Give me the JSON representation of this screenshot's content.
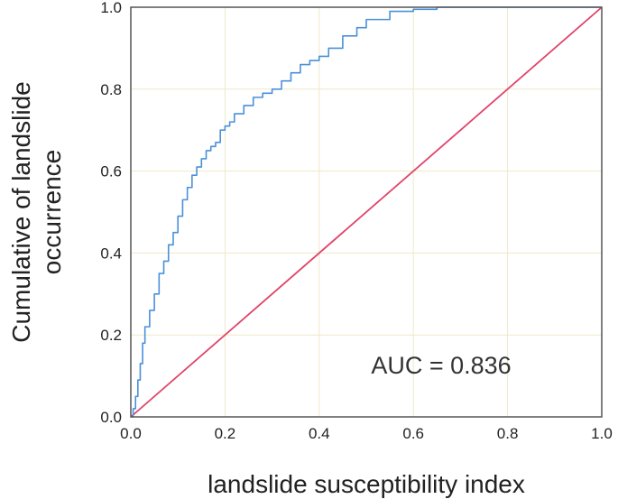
{
  "chart_data": {
    "type": "line",
    "title": "",
    "xlabel": "landslide susceptibility index",
    "ylabel_lines": [
      "Cumulative of landslide",
      "occurrence"
    ],
    "xlim": [
      0,
      1
    ],
    "ylim": [
      0,
      1
    ],
    "grid": true,
    "x_ticks": [
      "0.0",
      "0.2",
      "0.4",
      "0.6",
      "0.8",
      "1.0"
    ],
    "y_ticks": [
      "0.0",
      "0.2",
      "0.4",
      "0.6",
      "0.8",
      "1.0"
    ],
    "annotation": "AUC = 0.836",
    "colors": {
      "roc": "#4a90d9",
      "reference": "#e0446a",
      "grid": "#efe8c8",
      "frame": "#555555"
    },
    "series": [
      {
        "style": "roc",
        "x": [
          0,
          0.005,
          0.01,
          0.015,
          0.02,
          0.025,
          0.03,
          0.04,
          0.05,
          0.06,
          0.07,
          0.08,
          0.09,
          0.1,
          0.11,
          0.12,
          0.13,
          0.14,
          0.15,
          0.16,
          0.17,
          0.18,
          0.19,
          0.2,
          0.21,
          0.22,
          0.24,
          0.26,
          0.28,
          0.3,
          0.32,
          0.34,
          0.36,
          0.38,
          0.4,
          0.42,
          0.45,
          0.48,
          0.5,
          0.55,
          0.6,
          0.65,
          1.0
        ],
        "y": [
          0,
          0.02,
          0.05,
          0.09,
          0.13,
          0.18,
          0.22,
          0.26,
          0.3,
          0.35,
          0.38,
          0.42,
          0.45,
          0.49,
          0.53,
          0.56,
          0.59,
          0.61,
          0.63,
          0.65,
          0.66,
          0.67,
          0.7,
          0.71,
          0.72,
          0.74,
          0.76,
          0.78,
          0.79,
          0.8,
          0.82,
          0.84,
          0.86,
          0.87,
          0.88,
          0.9,
          0.93,
          0.95,
          0.97,
          0.99,
          0.995,
          1.0,
          1.0
        ]
      },
      {
        "style": "reference",
        "x": [
          0,
          1
        ],
        "y": [
          0,
          1
        ]
      }
    ]
  }
}
